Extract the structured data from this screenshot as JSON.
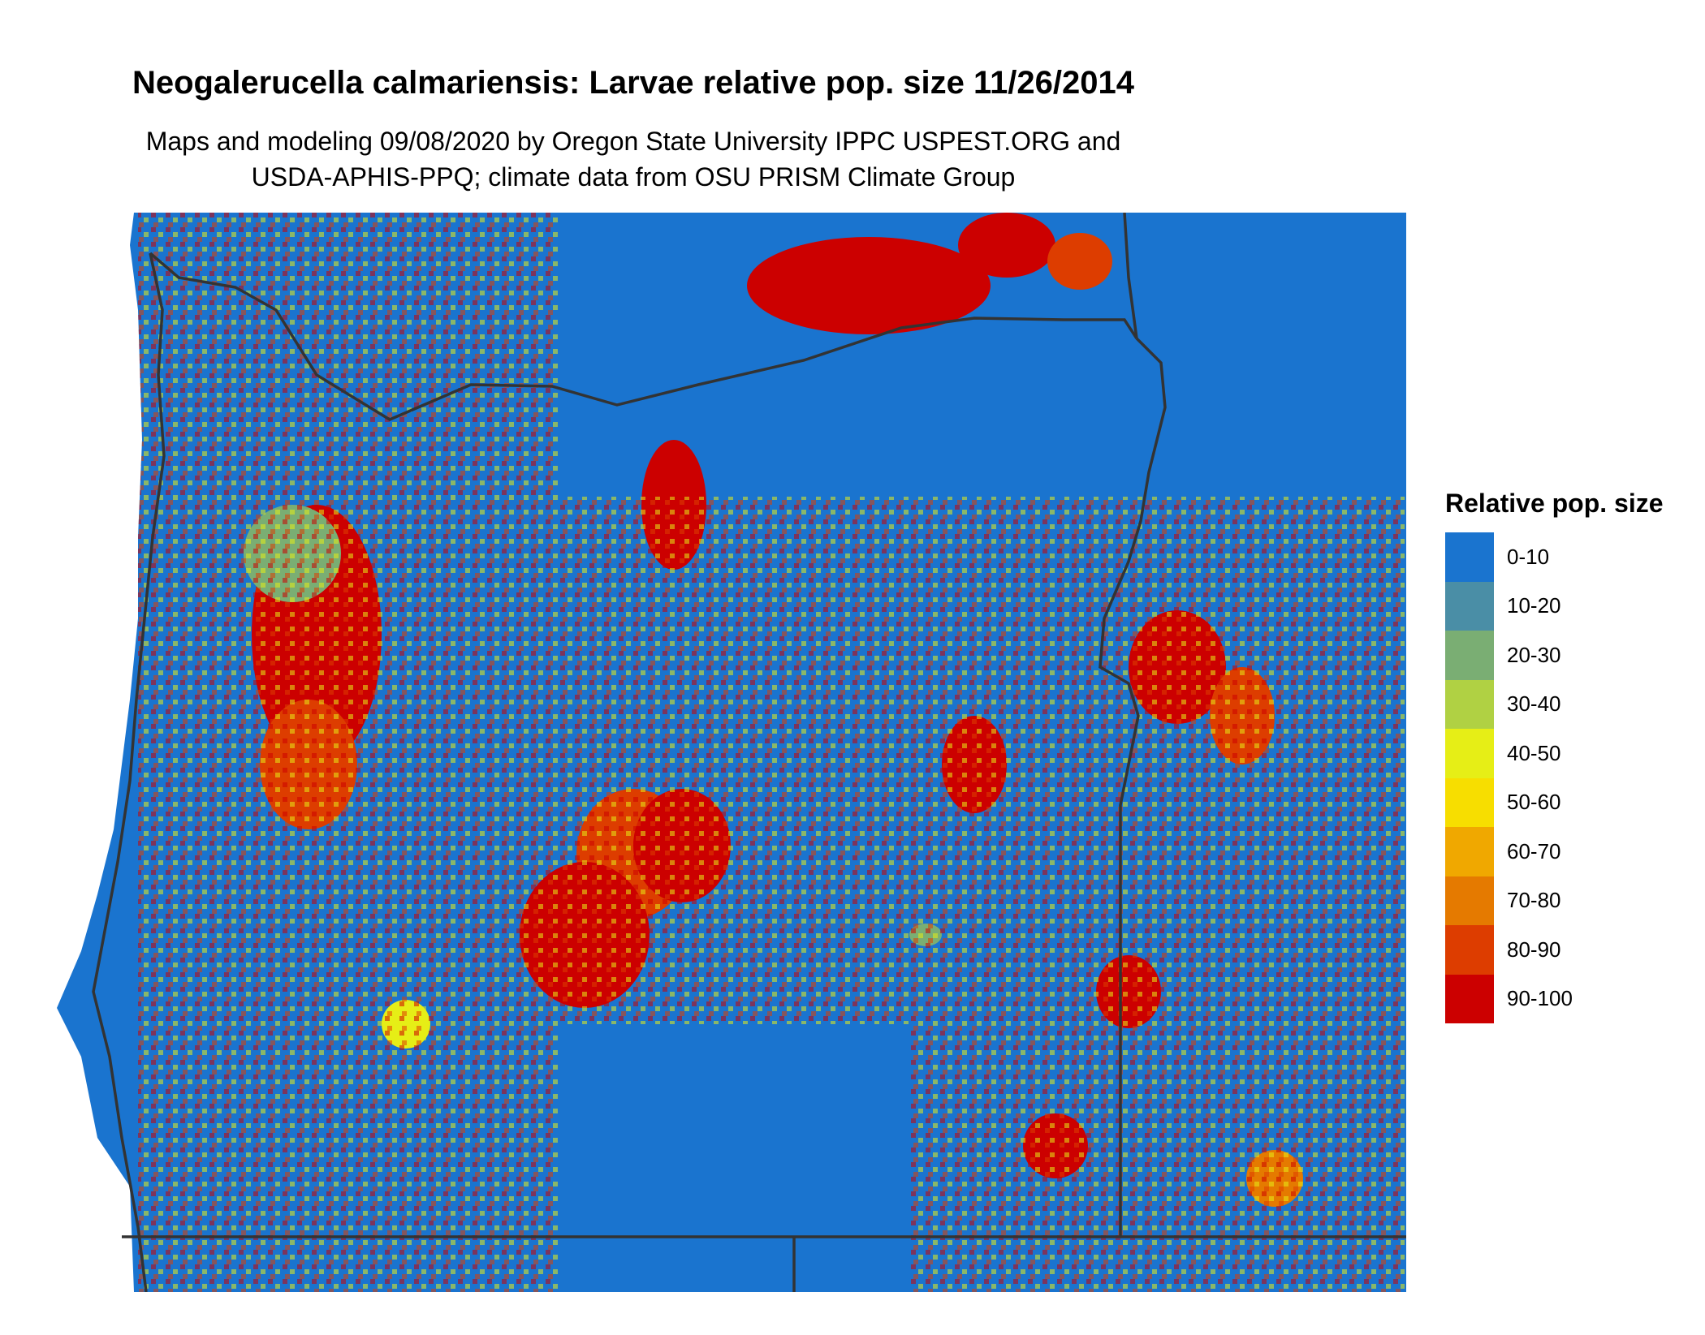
{
  "title": "Neogalerucella calmariensis: Larvae relative pop. size 11/26/2014",
  "subtitle_line1": "Maps and modeling 09/08/2020 by Oregon State University IPPC USPEST.ORG and",
  "subtitle_line2": "USDA-APHIS-PPQ; climate data from OSU PRISM Climate Group",
  "map": {
    "region": "Oregon",
    "background_class": "0-10",
    "hotspot_classes": [
      "80-90",
      "90-100"
    ],
    "state_border_color": "#333333"
  },
  "legend": {
    "title": "Relative pop. size",
    "items": [
      {
        "label": "0-10",
        "color": "#1a74cf"
      },
      {
        "label": "10-20",
        "color": "#4a8ea6"
      },
      {
        "label": "20-30",
        "color": "#7aae73"
      },
      {
        "label": "30-40",
        "color": "#b0d143"
      },
      {
        "label": "40-50",
        "color": "#e6ee16"
      },
      {
        "label": "50-60",
        "color": "#f7de00"
      },
      {
        "label": "60-70",
        "color": "#f0a800"
      },
      {
        "label": "70-80",
        "color": "#e57a00"
      },
      {
        "label": "80-90",
        "color": "#dd3d00"
      },
      {
        "label": "90-100",
        "color": "#cc0000"
      }
    ]
  }
}
